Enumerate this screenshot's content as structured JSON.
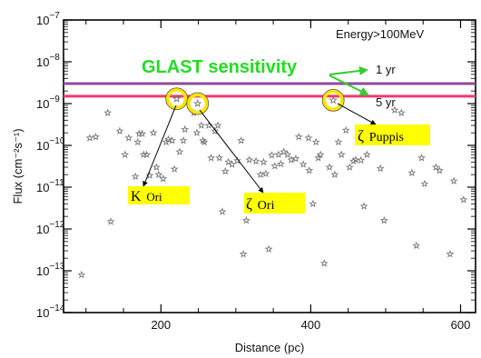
{
  "chart_data": {
    "type": "scatter",
    "title": "",
    "xlabel": "Distance (pc)",
    "ylabel": "Flux (cm⁻²s⁻¹)",
    "xlim": [
      70,
      620
    ],
    "ylim_log10": [
      -14,
      -7
    ],
    "x_scale": "linear",
    "y_scale": "log",
    "x_ticks": [
      200,
      400,
      600
    ],
    "x_tick_labels": [
      "200",
      "400",
      "600"
    ],
    "y_ticks": [
      -14,
      -13,
      -12,
      -11,
      -10,
      -9,
      -8,
      -7
    ],
    "y_tick_labels": [
      {
        "base": "10",
        "exp": "−14"
      },
      {
        "base": "10",
        "exp": "−13"
      },
      {
        "base": "10",
        "exp": "−12"
      },
      {
        "base": "10",
        "exp": "−11"
      },
      {
        "base": "10",
        "exp": "−10"
      },
      {
        "base": "10",
        "exp": "−9"
      },
      {
        "base": "10",
        "exp": "−8"
      },
      {
        "base": "10",
        "exp": "−7"
      }
    ],
    "energy_label": "Energy>100MeV",
    "sensitivity_label": "GLAST sensitivity",
    "sensitivity_lines": [
      {
        "label": "1 yr",
        "flux": 3e-09,
        "color": "#8b4a9e"
      },
      {
        "label": "5 yr",
        "flux": 1.5e-09,
        "color": "#ee3b6e"
      }
    ],
    "arrow_color": "#33cc33",
    "sensitivity_text_color": "#22dd22",
    "highlight_color": "#ffe600",
    "highlighted_sources": [
      {
        "name_symbol": "K",
        "name": "Ori",
        "x": 221,
        "y": 1.3e-09
      },
      {
        "name_symbol": "ζ",
        "name": "Ori",
        "x": 249,
        "y": 1e-09
      },
      {
        "name_symbol": "ζ",
        "name": "Puppis",
        "x": 430,
        "y": 1.2e-09
      }
    ],
    "points": [
      [
        94,
        8e-14
      ],
      [
        105,
        1.5e-10
      ],
      [
        113,
        1.6e-10
      ],
      [
        129,
        6e-10
      ],
      [
        133,
        1.5e-12
      ],
      [
        145,
        2.2e-10
      ],
      [
        152,
        6e-11
      ],
      [
        157,
        1.5e-10
      ],
      [
        166,
        1.8e-11
      ],
      [
        169,
        1.2e-10
      ],
      [
        171,
        1.9e-10
      ],
      [
        175,
        1.9e-10
      ],
      [
        177,
        6e-11
      ],
      [
        181,
        6e-11
      ],
      [
        185,
        1.9e-11
      ],
      [
        190,
        2e-10
      ],
      [
        194,
        3e-11
      ],
      [
        197,
        2e-11
      ],
      [
        203,
        1.6e-11
      ],
      [
        207,
        1.2e-10
      ],
      [
        210,
        1.4e-10
      ],
      [
        215,
        1.3e-10
      ],
      [
        218,
        2.7e-11
      ],
      [
        225,
        7e-11
      ],
      [
        230,
        1.3e-10
      ],
      [
        232,
        2.4e-10
      ],
      [
        244,
        6e-10
      ],
      [
        248,
        2e-10
      ],
      [
        254,
        3e-10
      ],
      [
        256,
        1.3e-10
      ],
      [
        258,
        1.2e-10
      ],
      [
        264,
        3e-10
      ],
      [
        267,
        5e-11
      ],
      [
        272,
        2.2e-10
      ],
      [
        276,
        3e-10
      ],
      [
        278,
        5e-11
      ],
      [
        282,
        2.6e-12
      ],
      [
        286,
        2.4e-11
      ],
      [
        290,
        4e-11
      ],
      [
        295,
        3.5e-11
      ],
      [
        302,
        4.3e-11
      ],
      [
        307,
        1.3e-10
      ],
      [
        310,
        2.5e-13
      ],
      [
        314,
        1.6e-12
      ],
      [
        318,
        4.5e-11
      ],
      [
        322,
        6e-12
      ],
      [
        327,
        4.2e-11
      ],
      [
        333,
        2e-11
      ],
      [
        337,
        4e-11
      ],
      [
        340,
        2.1e-11
      ],
      [
        344,
        3.3e-13
      ],
      [
        348,
        5.8e-11
      ],
      [
        352,
        3.2e-11
      ],
      [
        357,
        6e-11
      ],
      [
        360,
        3.6e-11
      ],
      [
        364,
        7e-11
      ],
      [
        369,
        6e-11
      ],
      [
        374,
        4.5e-11
      ],
      [
        380,
        4.8e-11
      ],
      [
        384,
        1.6e-10
      ],
      [
        390,
        3.5e-11
      ],
      [
        397,
        1.5e-10
      ],
      [
        398,
        2.5e-11
      ],
      [
        403,
        4e-12
      ],
      [
        407,
        1.2e-10
      ],
      [
        410,
        5e-11
      ],
      [
        413,
        6e-11
      ],
      [
        418,
        1.5e-13
      ],
      [
        425,
        3e-11
      ],
      [
        432,
        2e-11
      ],
      [
        437,
        1.2e-10
      ],
      [
        441,
        6e-11
      ],
      [
        447,
        2.3e-10
      ],
      [
        452,
        3e-11
      ],
      [
        457,
        4.2e-11
      ],
      [
        460,
        4.5e-11
      ],
      [
        467,
        4.4e-11
      ],
      [
        471,
        3.5e-12
      ],
      [
        475,
        6e-11
      ],
      [
        487,
        2.2e-10
      ],
      [
        493,
        2.8e-11
      ],
      [
        498,
        1.6e-12
      ],
      [
        503,
        1.4e-10
      ],
      [
        512,
        7e-10
      ],
      [
        521,
        6e-10
      ],
      [
        529,
        2.5e-10
      ],
      [
        535,
        2.2e-11
      ],
      [
        541,
        4e-13
      ],
      [
        548,
        5e-11
      ],
      [
        552,
        1.2e-11
      ],
      [
        567,
        3e-11
      ],
      [
        572,
        2.5e-11
      ],
      [
        586,
        2.5e-13
      ],
      [
        591,
        1.4e-11
      ],
      [
        604,
        5e-12
      ]
    ]
  }
}
